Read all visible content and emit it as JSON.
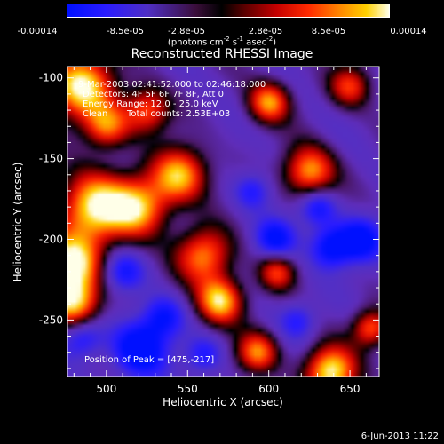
{
  "chart_data": {
    "type": "heatmap",
    "title": "Reconstructed RHESSI Image",
    "xlabel": "Heliocentric X (arcsec)",
    "ylabel": "Heliocentric Y (arcsec)",
    "xlim": [
      476,
      668
    ],
    "ylim": [
      -285,
      -93
    ],
    "x_ticks": [
      500,
      550,
      600,
      650
    ],
    "y_ticks": [
      -100,
      -150,
      -200,
      -250
    ],
    "colorbar": {
      "units_main": "(photons cm",
      "units_sup1": "-2",
      "units_mid1": " s",
      "units_sup2": "-1",
      "units_mid2": " asec",
      "units_sup3": "-2",
      "units_end": ")",
      "tick_labels": [
        "-0.00014",
        "-8.5e-05",
        "-2.8e-05",
        "2.8e-05",
        "8.5e-05",
        "0.00014"
      ],
      "range": [
        -0.00014,
        0.00014
      ]
    },
    "annotations": {
      "time_range": "9-Mar-2003 02:41:52.000 to 02:46:18.000",
      "detectors": "Detectors: 4F 5F 6F 7F 8F, Att 0",
      "energy": "Energy Range: 12.0 - 25.0 keV",
      "method": "Clean",
      "counts": "Total counts: 2.53E+03",
      "peak": "Position of Peak = [475,-217]"
    },
    "sources": [
      {
        "x": 484,
        "y": -105,
        "r": 14,
        "v": 1.0
      },
      {
        "x": 492,
        "y": -180,
        "r": 15,
        "v": 0.95
      },
      {
        "x": 478,
        "y": -215,
        "r": 13,
        "v": 1.0
      },
      {
        "x": 480,
        "y": -240,
        "r": 11,
        "v": 0.85
      },
      {
        "x": 520,
        "y": -180,
        "r": 13,
        "v": 0.75
      },
      {
        "x": 545,
        "y": -160,
        "r": 12,
        "v": 0.8
      },
      {
        "x": 560,
        "y": -210,
        "r": 12,
        "v": 0.7
      },
      {
        "x": 570,
        "y": -238,
        "r": 10,
        "v": 0.9
      },
      {
        "x": 600,
        "y": -115,
        "r": 9,
        "v": 0.7
      },
      {
        "x": 625,
        "y": -158,
        "r": 11,
        "v": 0.75
      },
      {
        "x": 593,
        "y": -270,
        "r": 9,
        "v": 0.65
      },
      {
        "x": 638,
        "y": -282,
        "r": 11,
        "v": 1.0
      },
      {
        "x": 663,
        "y": -255,
        "r": 8,
        "v": 0.6
      },
      {
        "x": 500,
        "y": -130,
        "r": 10,
        "v": 0.6
      },
      {
        "x": 525,
        "y": -120,
        "r": 10,
        "v": 0.55
      },
      {
        "x": 650,
        "y": -105,
        "r": 9,
        "v": 0.45
      },
      {
        "x": 605,
        "y": -220,
        "r": 8,
        "v": 0.45
      }
    ],
    "sinks": [
      {
        "x": 520,
        "y": -268,
        "r": 12,
        "v": -0.9
      },
      {
        "x": 535,
        "y": -248,
        "r": 9,
        "v": -0.6
      },
      {
        "x": 604,
        "y": -200,
        "r": 9,
        "v": -0.7
      },
      {
        "x": 638,
        "y": -205,
        "r": 9,
        "v": -0.75
      },
      {
        "x": 630,
        "y": -180,
        "r": 8,
        "v": -0.6
      },
      {
        "x": 657,
        "y": -200,
        "r": 10,
        "v": -0.75
      },
      {
        "x": 485,
        "y": -260,
        "r": 9,
        "v": -0.6
      },
      {
        "x": 510,
        "y": -220,
        "r": 9,
        "v": -0.55
      },
      {
        "x": 590,
        "y": -170,
        "r": 8,
        "v": -0.5
      },
      {
        "x": 560,
        "y": -272,
        "r": 8,
        "v": -0.5
      },
      {
        "x": 618,
        "y": -250,
        "r": 8,
        "v": -0.45
      }
    ]
  },
  "footer": {
    "timestamp": "6-Jun-2013 11:22"
  }
}
